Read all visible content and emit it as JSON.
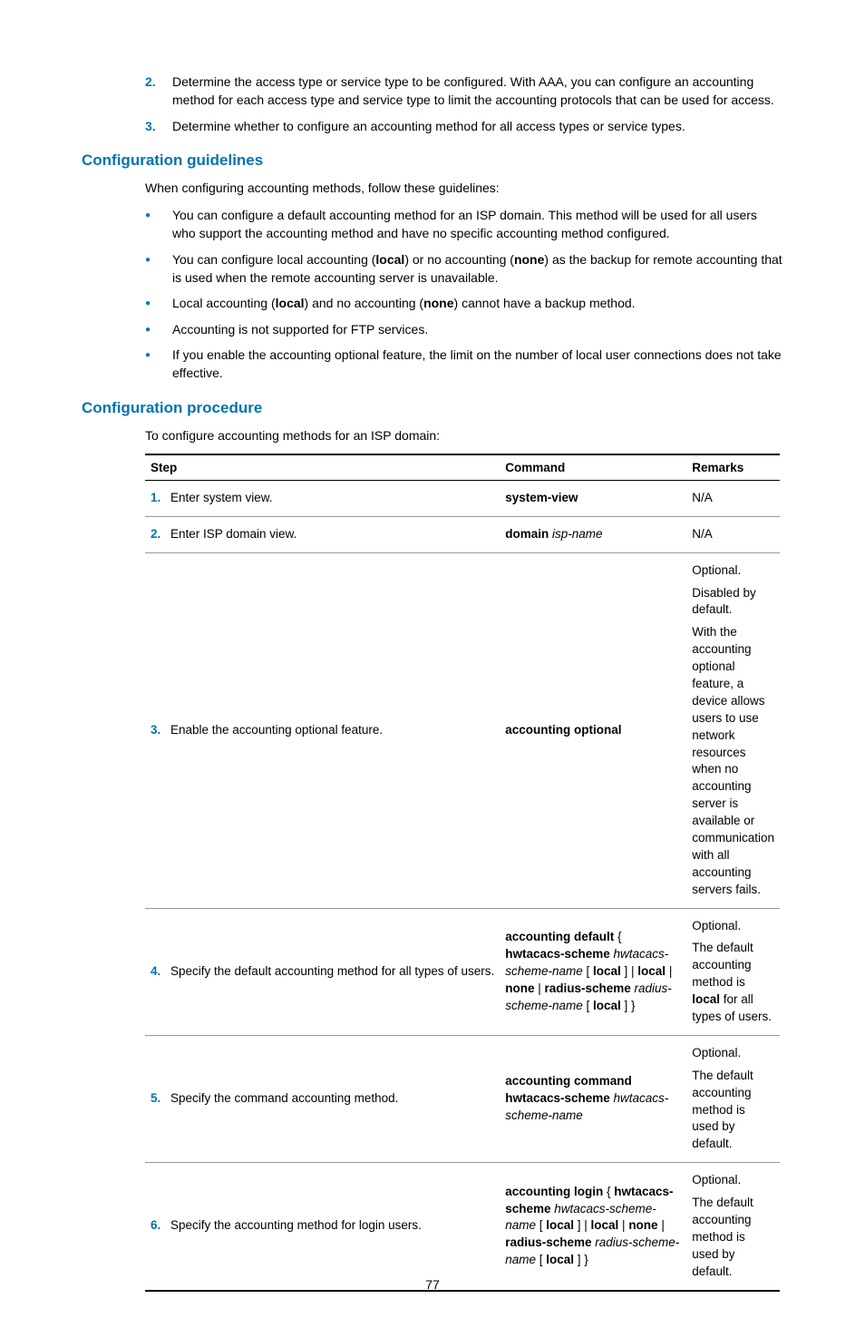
{
  "colors": {
    "accent": "#0073b3",
    "text": "#000000",
    "rule_light": "#999999",
    "rule_heavy": "#000000",
    "background": "#ffffff"
  },
  "intro_list": [
    {
      "num": "2.",
      "text_before": "Determine the access type or service type to be configured. With AAA, you can configure an accounting method for each access type and service type to limit the accounting protocols that can be used for access."
    },
    {
      "num": "3.",
      "text_before": "Determine whether to configure an accounting method for all access types or service types."
    }
  ],
  "guidelines": {
    "heading": "Configuration guidelines",
    "lead": "When configuring accounting methods, follow these guidelines:",
    "bullets": [
      {
        "html": "You can configure a default accounting method for an ISP domain. This method will be used for all users who support the accounting method and have no specific accounting method configured."
      },
      {
        "html": "You can configure local accounting (<b>local</b>) or no accounting (<b>none</b>) as the backup for remote accounting that is used when the remote accounting server is unavailable."
      },
      {
        "html": "Local accounting (<b>local</b>) and no accounting (<b>none</b>) cannot have a backup method."
      },
      {
        "html": "Accounting is not supported for FTP services."
      },
      {
        "html": "If you enable the accounting optional feature, the limit on the number of local user connections does not take effective."
      }
    ]
  },
  "procedure": {
    "heading": "Configuration procedure",
    "lead": "To configure accounting methods for an ISP domain:",
    "table": {
      "headers": {
        "step": "Step",
        "command": "Command",
        "remarks": "Remarks"
      },
      "rows": [
        {
          "num": "1.",
          "step": "Enter system view.",
          "command_html": "<span class='b'>system-view</span>",
          "remarks_html": "N/A"
        },
        {
          "num": "2.",
          "step": "Enter ISP domain view.",
          "command_html": "<span class='b'>domain</span> <span class='em'>isp-name</span>",
          "remarks_html": "N/A"
        },
        {
          "num": "3.",
          "step": "Enable the accounting optional feature.",
          "command_html": "<span class='b'>accounting optional</span>",
          "remarks_html": "<p>Optional.</p><p>Disabled by default.</p><p>With the accounting optional feature, a device allows users to use network resources when no accounting server is available or communication with all accounting servers fails.</p>"
        },
        {
          "num": "4.",
          "step": "Specify the default accounting method for all types of users.",
          "command_html": "<span class='b'>accounting default</span> { <span class='b'>hwtacacs-scheme</span> <span class='em'>hwtacacs-scheme-name</span> [ <span class='b'>local</span> ] | <span class='b'>local</span> | <span class='b'>none</span> | <span class='b'>radius-scheme</span> <span class='em'>radius-scheme-name</span> [ <span class='b'>local</span> ] }",
          "remarks_html": "<p>Optional.</p><p>The default accounting method is <b>local</b> for all types of users.</p>"
        },
        {
          "num": "5.",
          "step": "Specify the command accounting method.",
          "command_html": "<span class='b'>accounting command</span> <span class='b'>hwtacacs-scheme</span> <span class='em'>hwtacacs-scheme-name</span>",
          "remarks_html": "<p>Optional.</p><p>The default accounting method is used by default.</p>"
        },
        {
          "num": "6.",
          "step": "Specify the accounting method for login users.",
          "command_html": "<span class='b'>accounting login</span> { <span class='b'>hwtacacs-scheme</span> <span class='em'>hwtacacs-scheme-name</span> [ <span class='b'>local</span> ] | <span class='b'>local</span> | <span class='b'>none</span> | <span class='b'>radius-scheme</span> <span class='em'>radius-scheme-name</span> [ <span class='b'>local</span> ] }",
          "remarks_html": "<p>Optional.</p><p>The default accounting method is used by default.</p>"
        }
      ]
    }
  },
  "page_number": "77"
}
